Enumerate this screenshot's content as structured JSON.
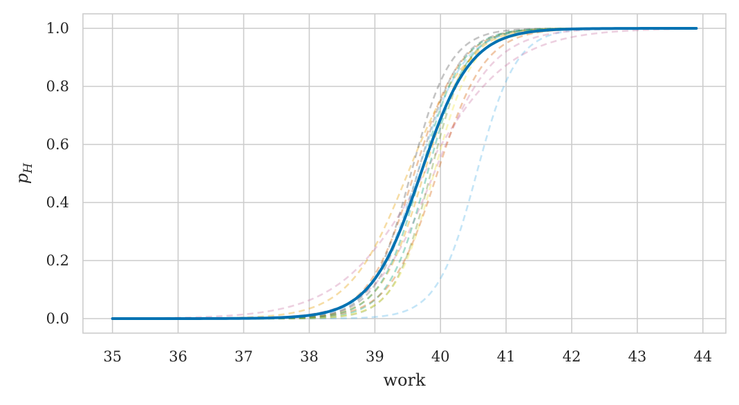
{
  "chart_data": {
    "type": "line",
    "title": "",
    "xlabel": "work",
    "ylabel": {
      "base": "p",
      "subscript": "H"
    },
    "xlim": [
      34.55,
      44.35
    ],
    "ylim": [
      -0.05,
      1.05
    ],
    "grid": true,
    "x_ticks": [
      "35",
      "36",
      "37",
      "38",
      "39",
      "40",
      "41",
      "42",
      "43",
      "44"
    ],
    "y_ticks": [
      "0.0",
      "0.2",
      "0.4",
      "0.6",
      "0.8",
      "1.0"
    ],
    "x_range": [
      35.0,
      43.9
    ],
    "main_series": {
      "color": "#0072B2",
      "midpoint": 39.7,
      "scale": 0.38
    },
    "series": [
      {
        "color": "#0072B2",
        "midpoint": 39.7,
        "scale": 0.38
      },
      {
        "color": "#56B4E9",
        "midpoint": 40.55,
        "scale": 0.3
      },
      {
        "color": "#CC79A7",
        "midpoint": 39.75,
        "scale": 0.65
      },
      {
        "color": "#CC79A7",
        "midpoint": 39.9,
        "scale": 0.45
      },
      {
        "color": "#E69F00",
        "midpoint": 39.5,
        "scale": 0.45
      },
      {
        "color": "#D55E00",
        "midpoint": 39.6,
        "scale": 0.35
      },
      {
        "color": "#555555",
        "midpoint": 39.55,
        "scale": 0.3
      },
      {
        "color": "#666666",
        "midpoint": 39.65,
        "scale": 0.32
      },
      {
        "color": "#009E73",
        "midpoint": 39.8,
        "scale": 0.3
      },
      {
        "color": "#6B8E23",
        "midpoint": 39.85,
        "scale": 0.28
      },
      {
        "color": "#F0E442",
        "midpoint": 39.9,
        "scale": 0.3
      },
      {
        "color": "#E69F00",
        "midpoint": 39.75,
        "scale": 0.33
      },
      {
        "color": "#56B4E9",
        "midpoint": 39.65,
        "scale": 0.35
      },
      {
        "color": "#D55E00",
        "midpoint": 39.95,
        "scale": 0.36
      },
      {
        "color": "#009E73",
        "midpoint": 39.7,
        "scale": 0.31
      }
    ]
  }
}
